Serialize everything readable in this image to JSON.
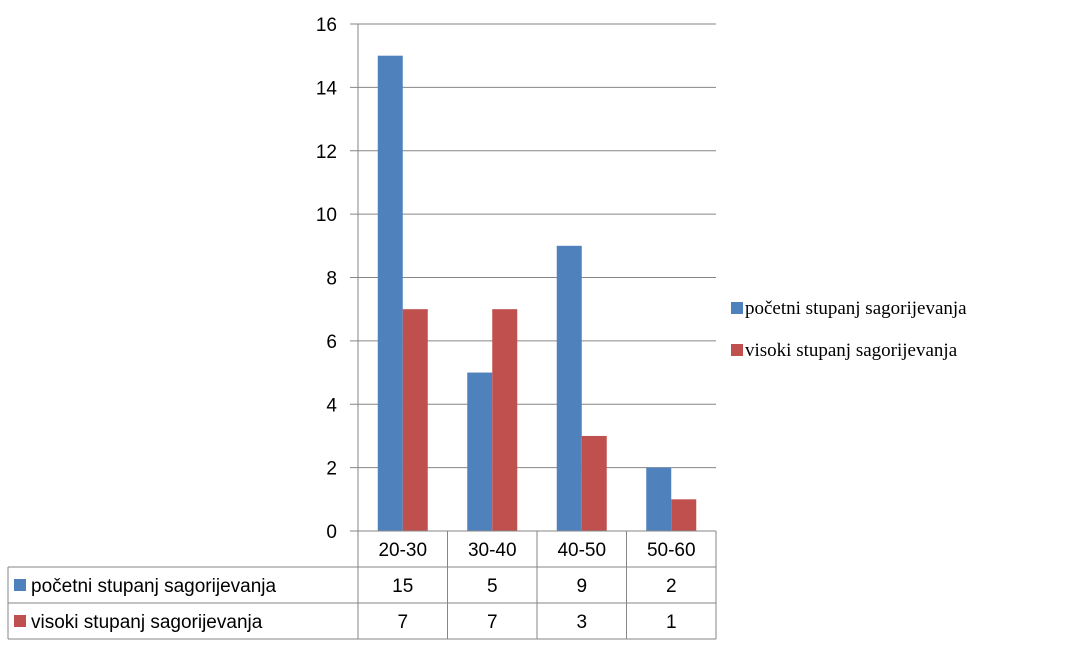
{
  "chart_data": {
    "type": "bar",
    "categories": [
      "20-30",
      "30-40",
      "40-50",
      "50-60"
    ],
    "series": [
      {
        "name": "početni stupanj sagorijevanja",
        "values": [
          15,
          5,
          9,
          2
        ],
        "color": "#4F81BD"
      },
      {
        "name": "visoki stupanj sagorijevanja",
        "values": [
          7,
          7,
          3,
          1
        ],
        "color": "#C0504D"
      }
    ],
    "y_ticks": [
      "0",
      "2",
      "4",
      "6",
      "8",
      "10",
      "12",
      "14",
      "16"
    ],
    "ylim": [
      0,
      16
    ],
    "grid": true,
    "legend_position": "right",
    "data_table": true
  }
}
